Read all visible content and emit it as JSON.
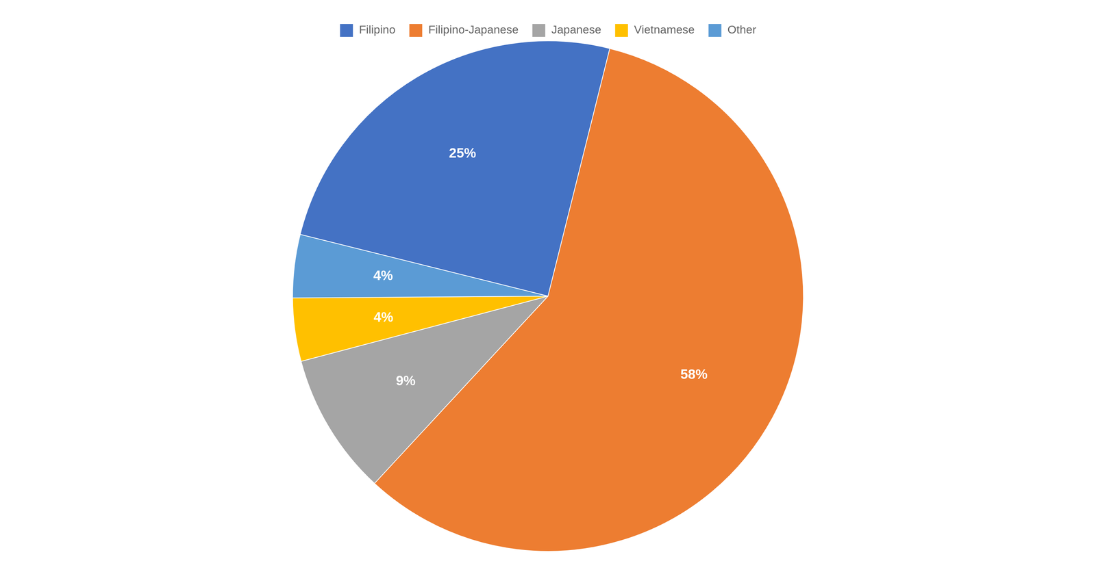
{
  "chart_data": {
    "type": "pie",
    "categories": [
      "Filipino",
      "Filipino-Japanese",
      "Japanese",
      "Vietnamese",
      "Other"
    ],
    "values": [
      25,
      58,
      9,
      4,
      4
    ],
    "value_labels": [
      "25%",
      "58%",
      "9%",
      "4%",
      "4%"
    ],
    "colors": [
      "#4472C4",
      "#ED7D31",
      "#A5A5A5",
      "#FFC000",
      "#5B9BD5"
    ],
    "legend": "top",
    "data_labels": true
  }
}
